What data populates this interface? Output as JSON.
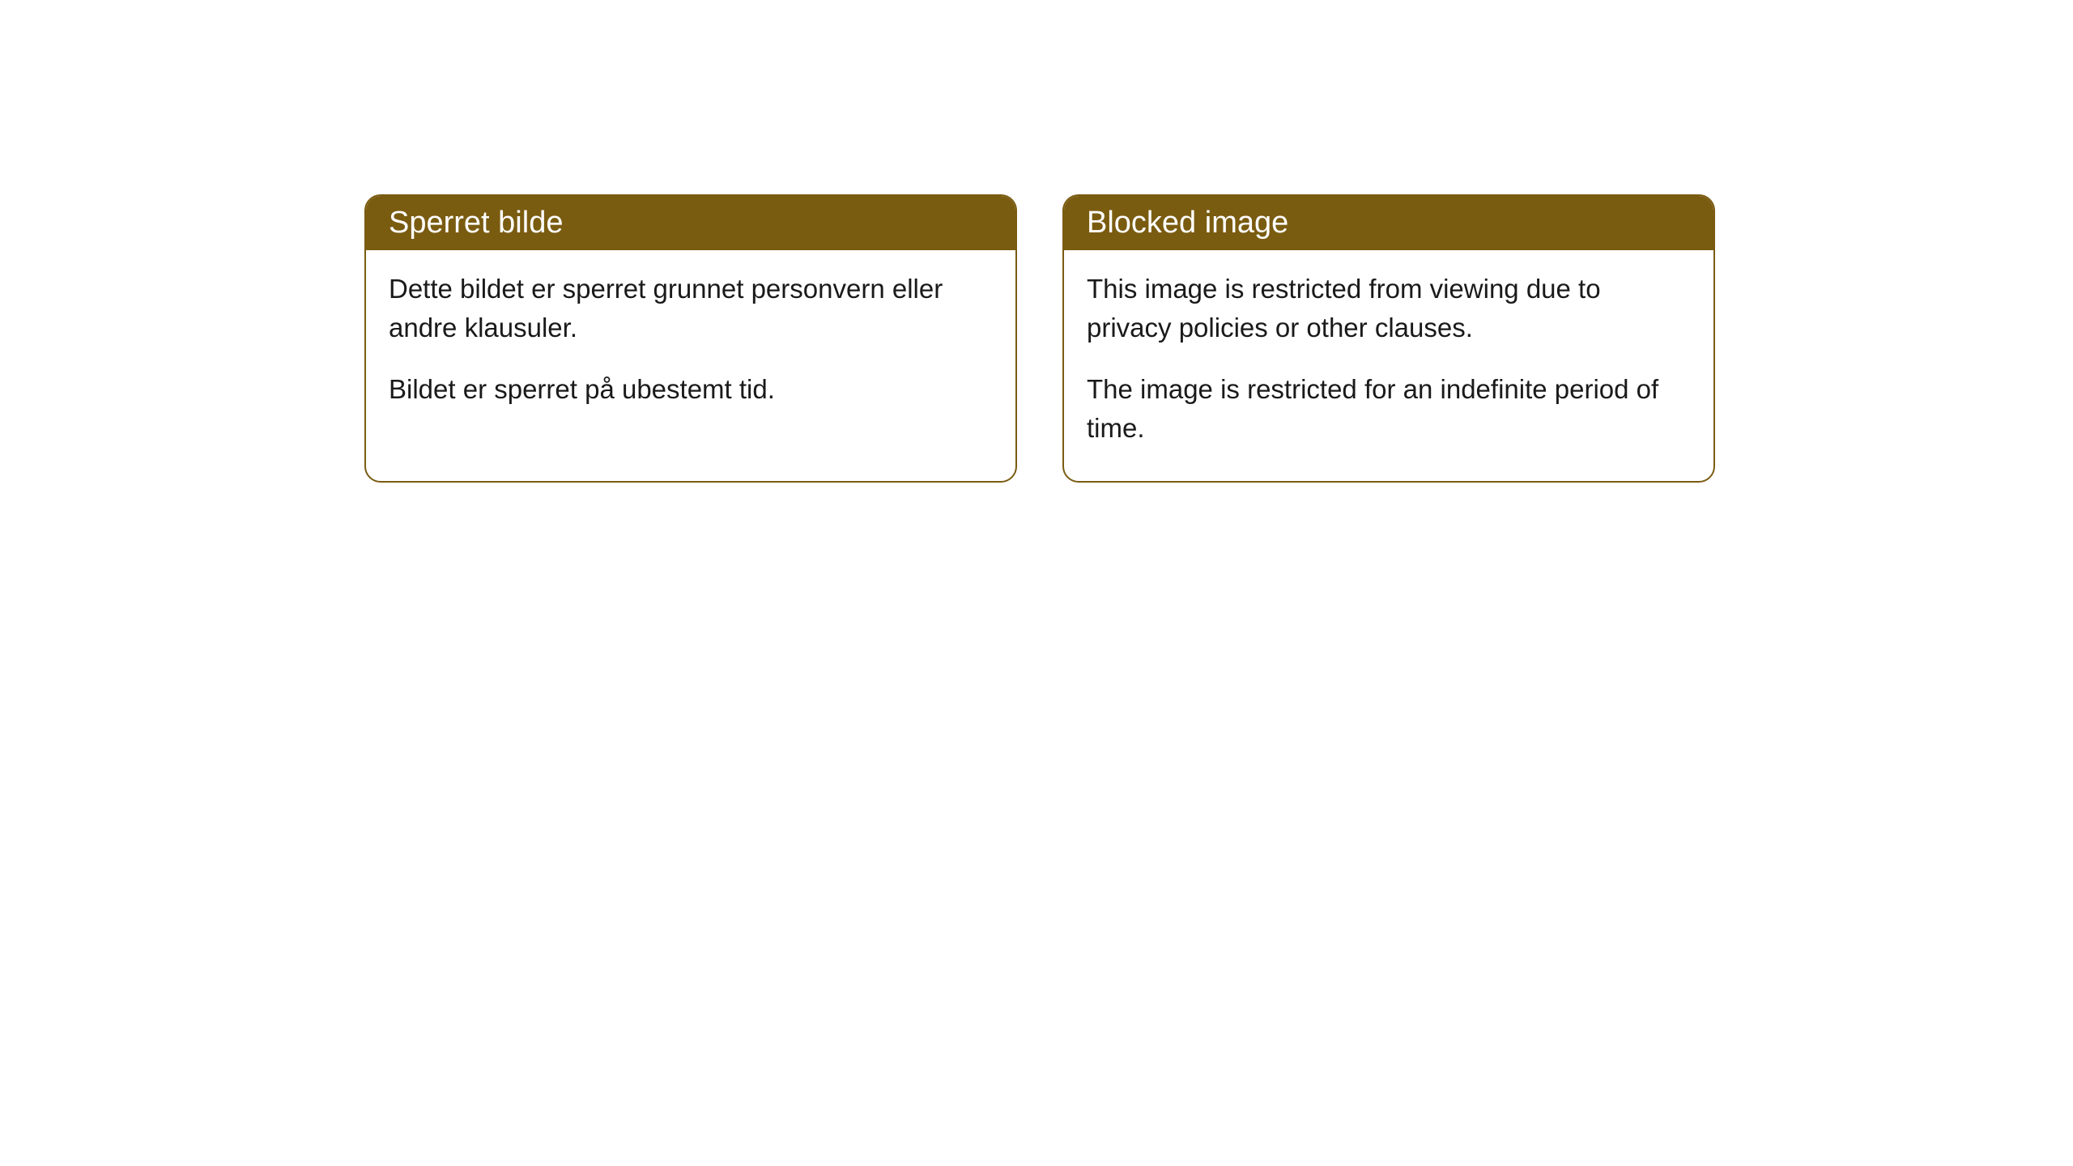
{
  "boxes": [
    {
      "title": "Sperret bilde",
      "paragraph1": "Dette bildet er sperret grunnet personvern eller andre klausuler.",
      "paragraph2": "Bildet er sperret på ubestemt tid."
    },
    {
      "title": "Blocked image",
      "paragraph1": "This image is restricted from viewing due to privacy policies or other clauses.",
      "paragraph2": "The image is restricted for an indefinite period of time."
    }
  ],
  "styling": {
    "header_bg_color": "#7a5c11",
    "header_text_color": "#ffffff",
    "border_color": "#7a5c11",
    "body_text_color": "#1a1a1a",
    "background_color": "#ffffff",
    "border_radius": 20,
    "header_fontsize": 38,
    "body_fontsize": 33
  }
}
